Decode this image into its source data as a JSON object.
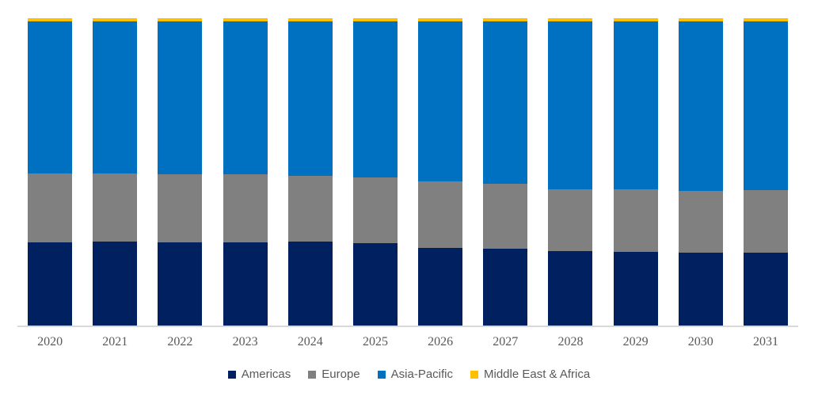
{
  "chart_data": {
    "type": "bar",
    "stacked": true,
    "percent_stacked": true,
    "title": "",
    "xlabel": "",
    "ylabel": "",
    "ylim": [
      0,
      100
    ],
    "grid": false,
    "legend_position": "bottom",
    "categories": [
      "2020",
      "2021",
      "2022",
      "2023",
      "2024",
      "2025",
      "2026",
      "2027",
      "2028",
      "2029",
      "2030",
      "2031"
    ],
    "series": [
      {
        "name": "Americas",
        "color": "#002060",
        "values": [
          27.2,
          27.5,
          27.3,
          27.2,
          27.4,
          26.9,
          25.5,
          25.3,
          24.4,
          24.2,
          23.8,
          24.0
        ]
      },
      {
        "name": "Europe",
        "color": "#808080",
        "values": [
          22.4,
          22.1,
          22.1,
          22.1,
          21.5,
          21.4,
          21.5,
          21.0,
          20.0,
          20.2,
          20.1,
          20.2
        ]
      },
      {
        "name": "Asia-Pacific",
        "color": "#0070C0",
        "values": [
          49.4,
          49.4,
          49.6,
          49.7,
          50.1,
          50.7,
          52.0,
          52.7,
          54.6,
          54.6,
          55.1,
          54.8
        ]
      },
      {
        "name": "Middle East & Africa",
        "color": "#FFC000",
        "values": [
          1.0,
          1.0,
          1.0,
          1.0,
          1.0,
          1.0,
          1.0,
          1.0,
          1.0,
          1.0,
          1.0,
          1.0
        ]
      }
    ]
  },
  "axis": {
    "line_color": "#D9D9D9",
    "tick_label_color": "#595959"
  },
  "legend": {
    "label_color": "#595959"
  }
}
